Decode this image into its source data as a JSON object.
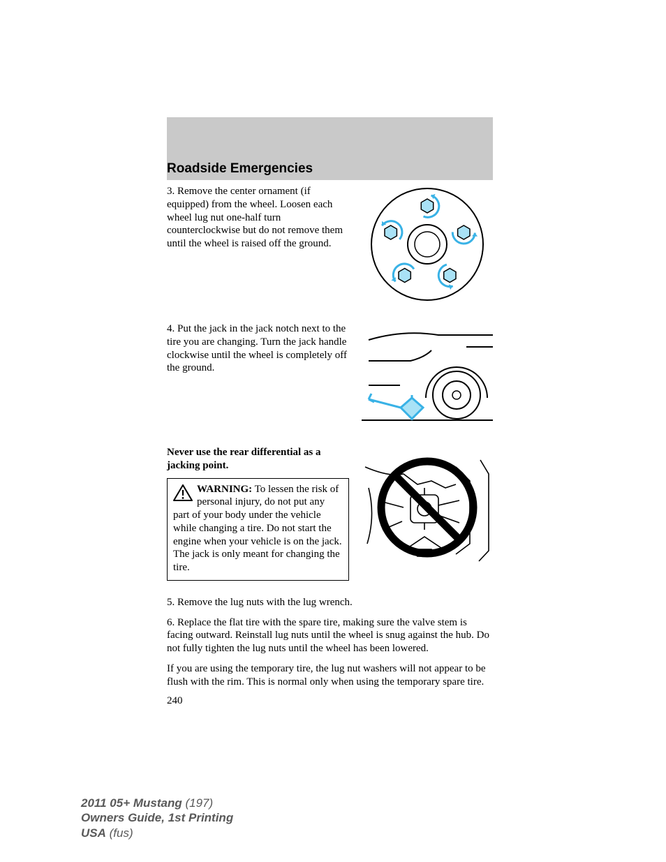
{
  "colors": {
    "header_band": "#c9c9c9",
    "accent": "#39b2e6",
    "accent_fill": "#a9e2f6",
    "ink": "#000000",
    "footer_text": "#595959",
    "page_bg": "#ffffff"
  },
  "header": {
    "section_title": "Roadside Emergencies"
  },
  "steps": {
    "s3": "3. Remove the center ornament (if equipped) from the wheel. Loosen each wheel lug nut one-half turn counterclockwise but do not remove them until the wheel is raised off the ground.",
    "s4": "4. Put the jack in the jack notch next to the tire you are changing. Turn the jack handle clockwise until the wheel is completely off the ground.",
    "bold_note": "Never use the rear differential as a jacking point.",
    "warning_label": "WARNING:",
    "warning_body": " To lessen the risk of personal injury, do not put any part of your body under the vehicle while changing a tire. Do not start the engine when your vehicle is on the jack. The jack is only meant for changing the tire.",
    "s5": "5. Remove the lug nuts with the lug wrench.",
    "s6": "6. Replace the flat tire with the spare tire, making sure the valve stem is facing outward. Reinstall lug nuts until the wheel is snug against the hub. Do not fully tighten the lug nuts until the wheel has been lowered.",
    "note": "If you are using the temporary tire, the lug nut washers will not appear to be flush with the rim. This is normal only when using the temporary spare tire.",
    "page_number": "240"
  },
  "footer": {
    "line1_bold": "2011 05+ Mustang",
    "line1_rest": " (197)",
    "line2": "Owners Guide, 1st Printing",
    "line3_bold": "USA",
    "line3_rest": " (fus)"
  },
  "diagrams": {
    "lugnut": {
      "type": "diagram",
      "outer_radius": 80,
      "hub_radius": 28,
      "bolt_radius": 10,
      "bolt_circle_radius": 55,
      "bolt_count": 5,
      "arrow_color": "#39b2e6",
      "bolt_fill": "#a9e2f6",
      "stroke": "#000000"
    },
    "jack": {
      "type": "diagram",
      "stroke": "#000000",
      "jack_fill": "#a9e2f6",
      "jack_stroke": "#39b2e6"
    },
    "prohibit": {
      "type": "diagram",
      "ring_stroke": "#000000",
      "ring_width": 9
    }
  }
}
